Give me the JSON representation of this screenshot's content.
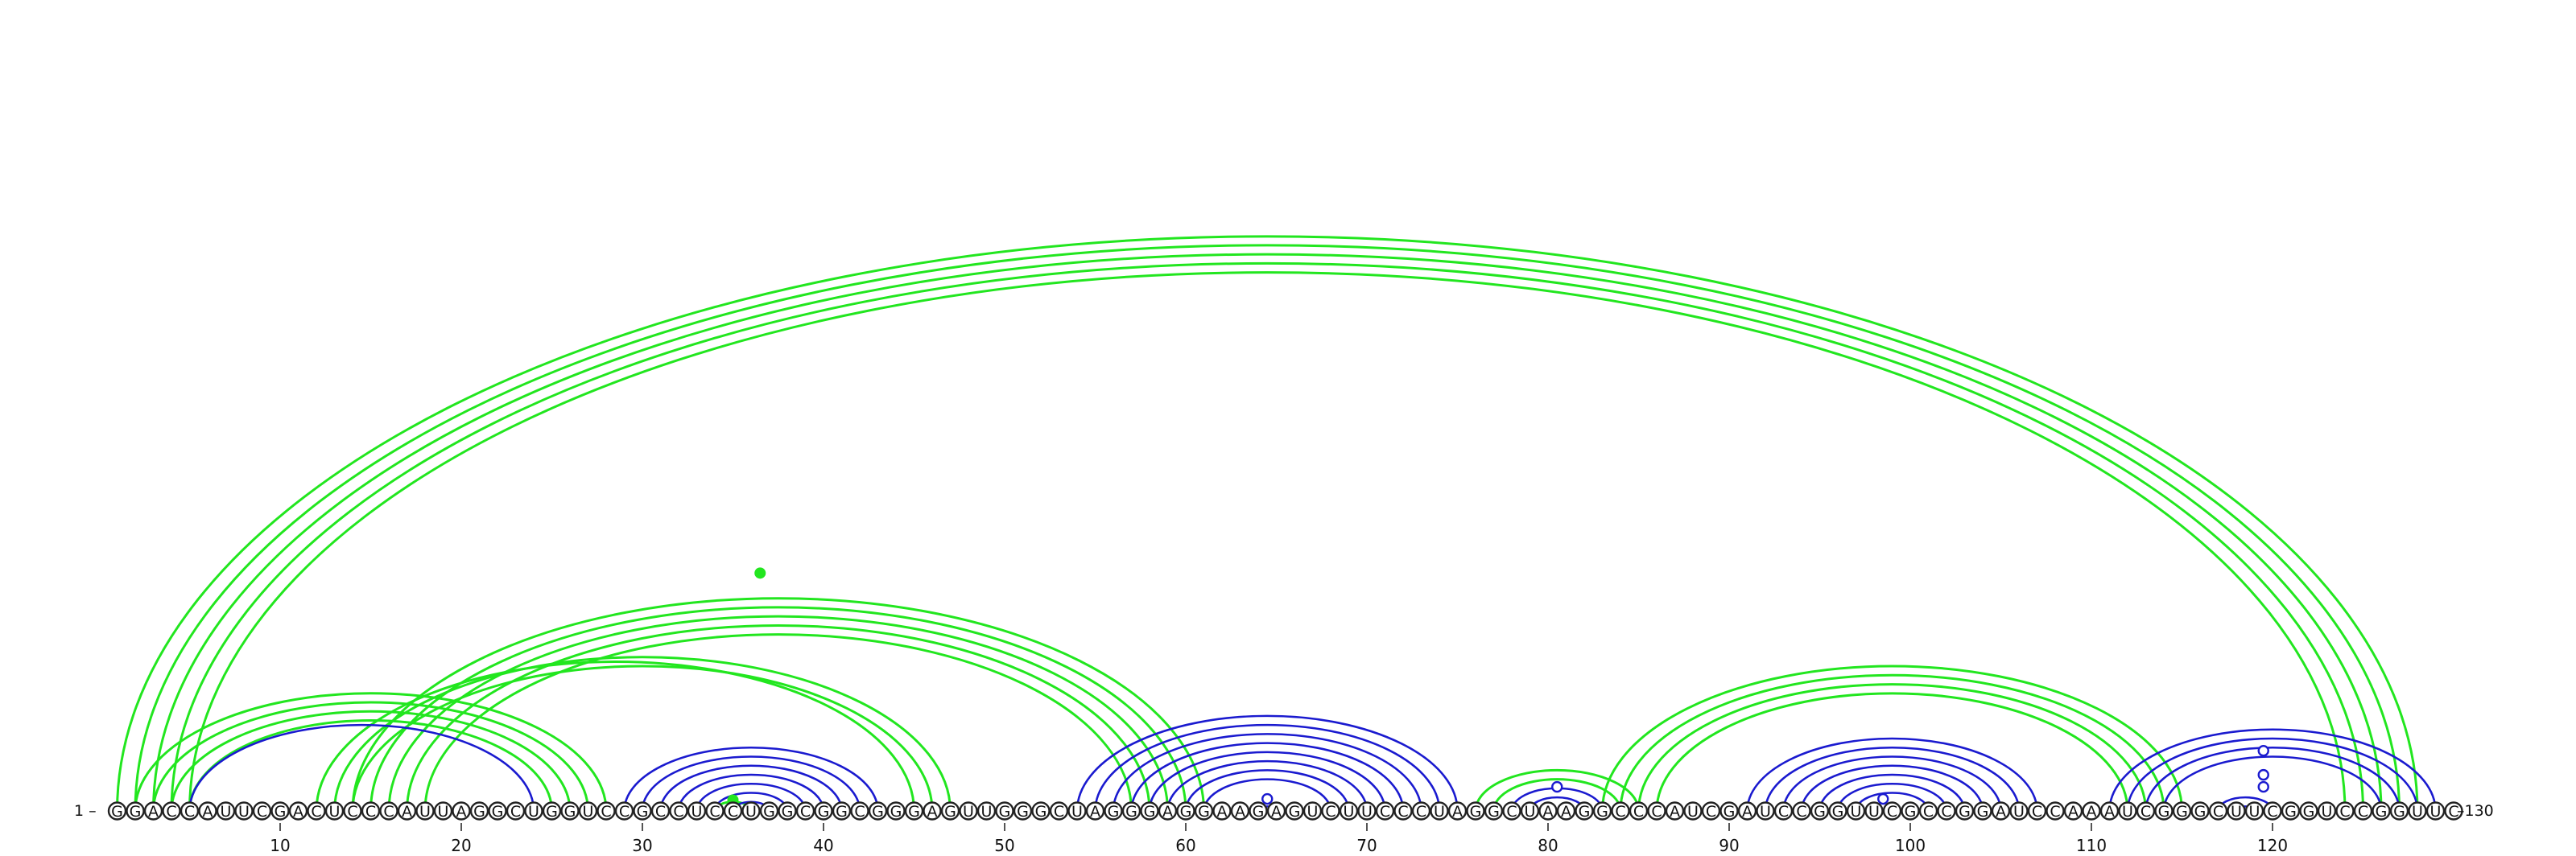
{
  "sequence": "GGACCAUUCGACUCCCAUUAGGCUGGUCCGCCUCCUGGCGGCGGGAGUUGGGCUAGGGAGGAAGAGUCUUCCCUAGGCUAAGGCCCAUCGAUCCGGUUCGCCGGAUCCAAAUCGGGCUUCGGUCCGGUUC",
  "start_label": "1 –",
  "end_label": "–130",
  "ticks": [
    "10",
    "20",
    "30",
    "40",
    "50",
    "60",
    "70",
    "80",
    "90",
    "100",
    "110",
    "120"
  ],
  "colors": {
    "green": "#22e61f",
    "blue": "#1a1acf"
  },
  "green_helices": [
    {
      "i": 1,
      "j": 128,
      "n": 5
    },
    {
      "i": 2,
      "j": 28,
      "n": 4
    },
    {
      "i": 12,
      "j": 45,
      "n": 1
    },
    {
      "i": 13,
      "j": 47,
      "n": 2
    },
    {
      "i": 14,
      "j": 61,
      "n": 5
    },
    {
      "i": 76,
      "j": 85,
      "n": 2
    },
    {
      "i": 83,
      "j": 115,
      "n": 4
    },
    {
      "i": 34,
      "j": 36,
      "n": 1
    }
  ],
  "blue_helices": [
    {
      "i": 5,
      "j": 24,
      "n": 1
    },
    {
      "i": 29,
      "j": 43,
      "n": 7
    },
    {
      "i": 54,
      "j": 75,
      "n": 8
    },
    {
      "i": 78,
      "j": 83,
      "n": 2
    },
    {
      "i": 91,
      "j": 107,
      "n": 7
    },
    {
      "i": 111,
      "j": 129,
      "n": 4
    }
  ],
  "blue_single_pairs": [
    [
      64,
      65
    ],
    [
      117,
      120
    ],
    [
      118,
      119
    ]
  ],
  "open_markers": [
    64.5,
    80.5,
    98.5,
    119.5,
    119.5,
    119.5
  ],
  "filled_markers": [
    36,
    35
  ]
}
